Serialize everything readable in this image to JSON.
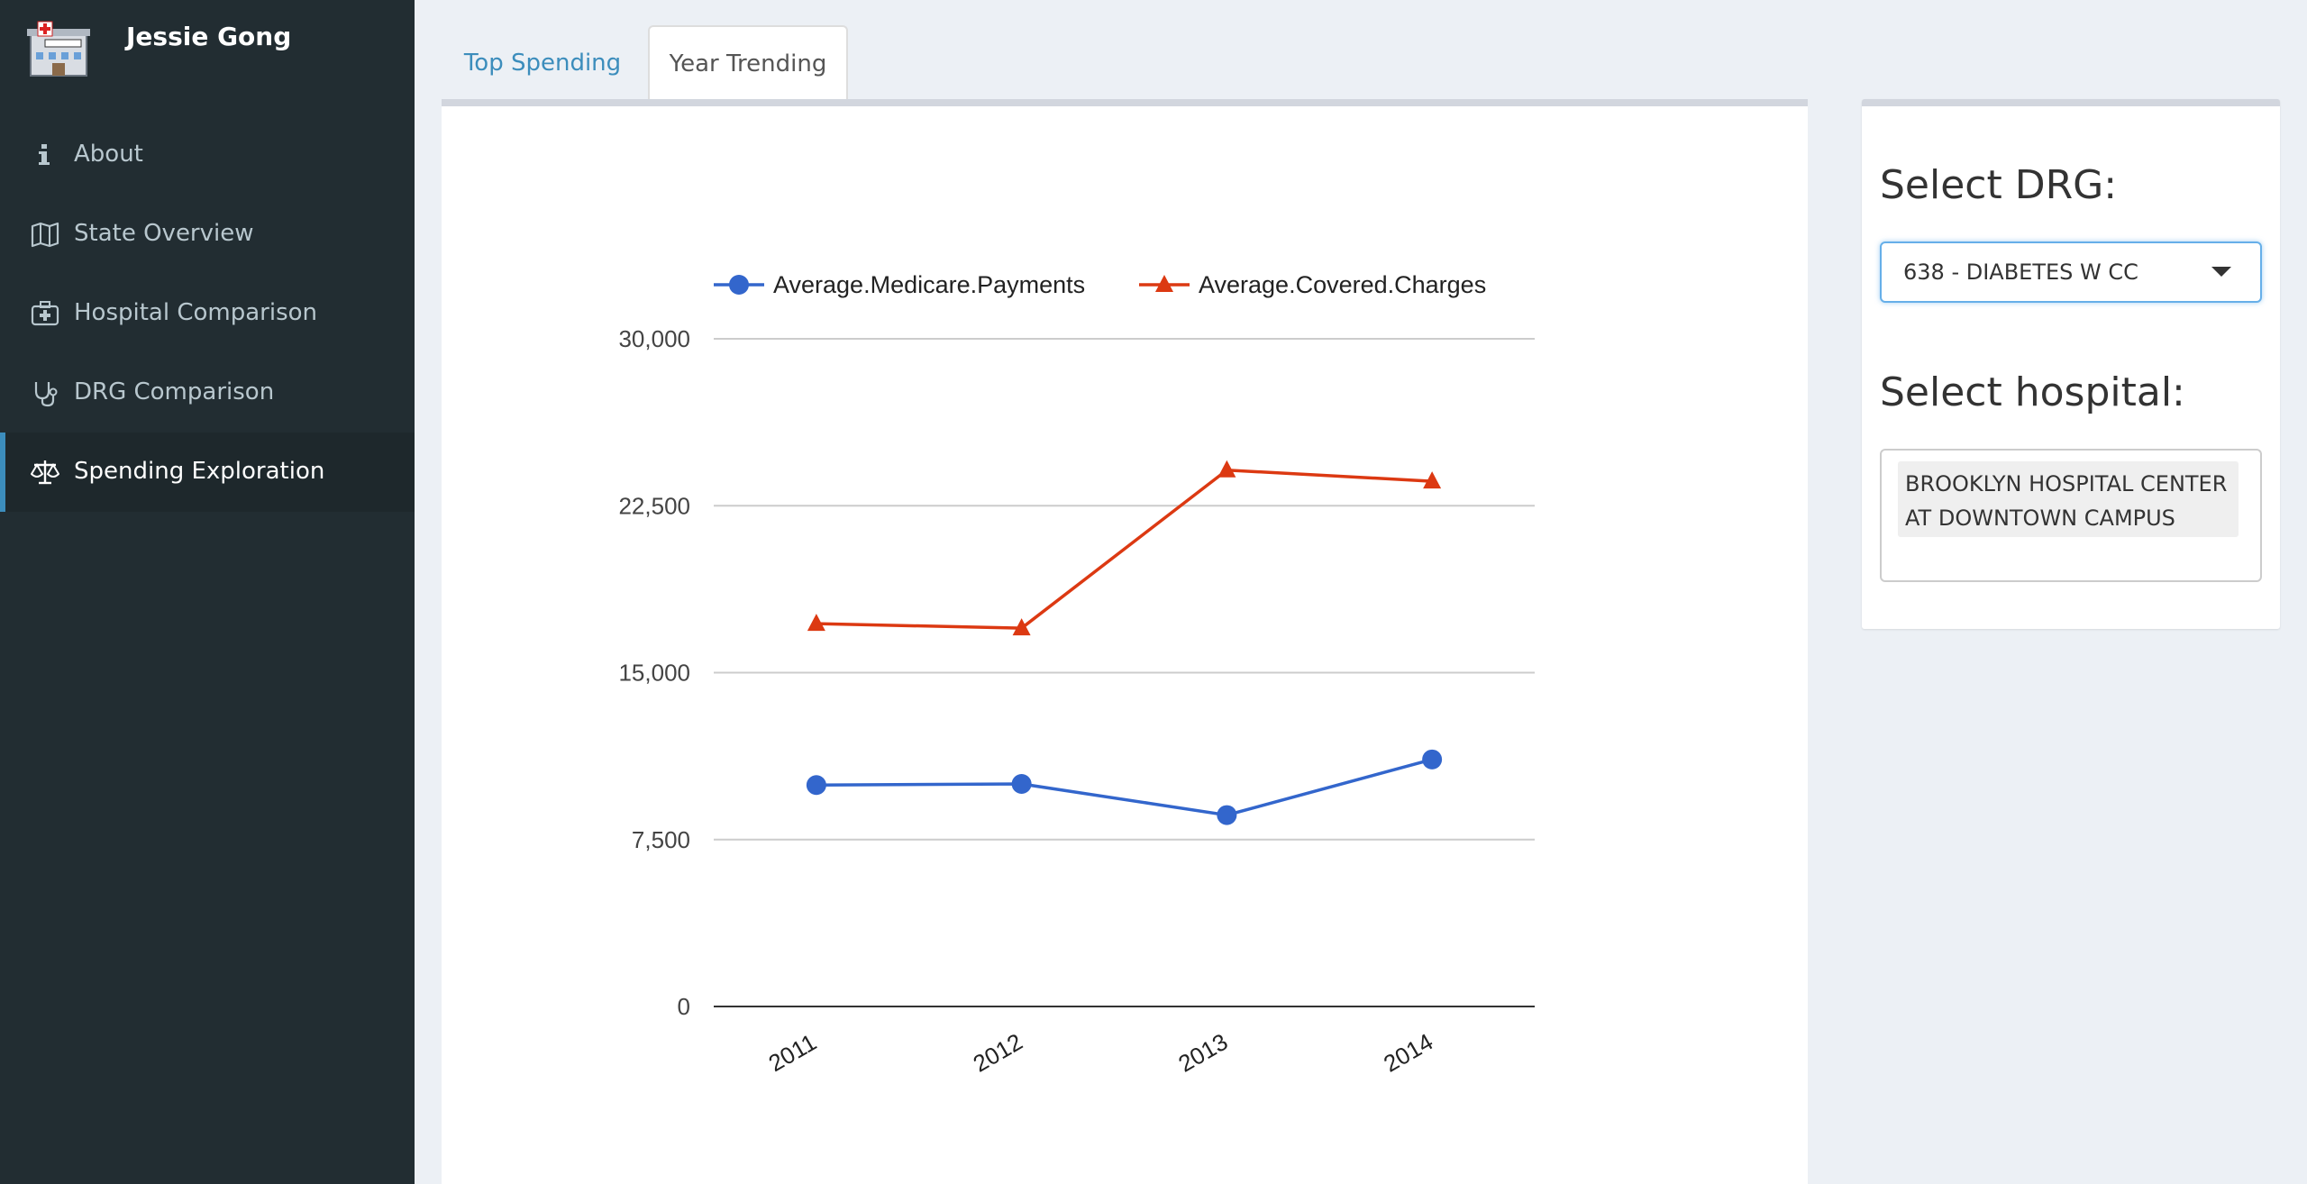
{
  "sidebar": {
    "user_name": "Jessie Gong",
    "logo_icon": "hospital-building-icon",
    "items": [
      {
        "label": "About",
        "icon": "info-icon",
        "active": false
      },
      {
        "label": "State Overview",
        "icon": "map-icon",
        "active": false
      },
      {
        "label": "Hospital Comparison",
        "icon": "medkit-icon",
        "active": false
      },
      {
        "label": "DRG Comparison",
        "icon": "stethoscope-icon",
        "active": false
      },
      {
        "label": "Spending Exploration",
        "icon": "balance-scale-icon",
        "active": true
      }
    ]
  },
  "tabs": [
    {
      "label": "Top Spending",
      "active": false
    },
    {
      "label": "Year Trending",
      "active": true
    }
  ],
  "controls": {
    "drg_label": "Select DRG:",
    "drg_value": "638 - DIABETES W CC",
    "hospital_label": "Select hospital:",
    "hospital_value_line1": "BROOKLYN HOSPITAL CENTER",
    "hospital_value_line2": "AT DOWNTOWN CAMPUS"
  },
  "chart_data": {
    "type": "line",
    "categories": [
      "2011",
      "2012",
      "2013",
      "2014"
    ],
    "series": [
      {
        "name": "Average.Medicare.Payments",
        "marker": "circle",
        "color": "#3366cc",
        "values": [
          9950,
          10000,
          8600,
          11100
        ]
      },
      {
        "name": "Average.Covered.Charges",
        "marker": "triangle",
        "color": "#dc3912",
        "values": [
          17200,
          17000,
          24100,
          23600
        ]
      }
    ],
    "yticks": [
      "30,000",
      "22,500",
      "15,000",
      "7,500",
      "0"
    ],
    "ylim": [
      0,
      30000
    ],
    "grid": true,
    "legend_position": "top"
  }
}
